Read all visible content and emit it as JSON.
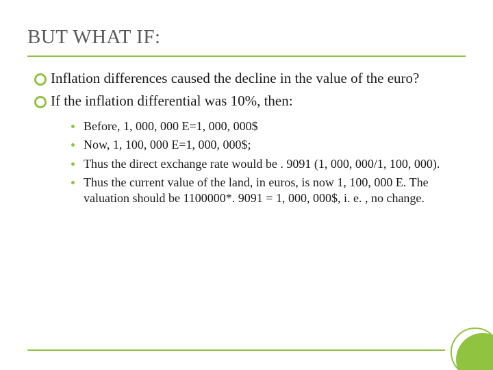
{
  "slide": {
    "title": "BUT WHAT IF:",
    "main_bullets": [
      "Inflation differences caused the decline in the value of the euro?",
      "If the inflation differential was 10%, then:"
    ],
    "sub_bullets": [
      "Before, 1, 000, 000 E=1, 000, 000$",
      "Now, 1, 100, 000 E=1, 000, 000$;",
      "Thus the direct exchange rate would be . 9091 (1, 000, 000/1, 100, 000).",
      "Thus the current value of the land, in euros, is now 1, 100, 000 E. The valuation should be 1100000*. 9091 = 1, 000, 000$, i. e. , no change."
    ]
  },
  "style": {
    "accent_color": "#8fc340",
    "title_color": "#5a5a5a",
    "text_color": "#1a1a1a",
    "background": "#ffffff",
    "title_fontsize": 29,
    "main_fontsize": 21,
    "sub_fontsize": 18
  }
}
